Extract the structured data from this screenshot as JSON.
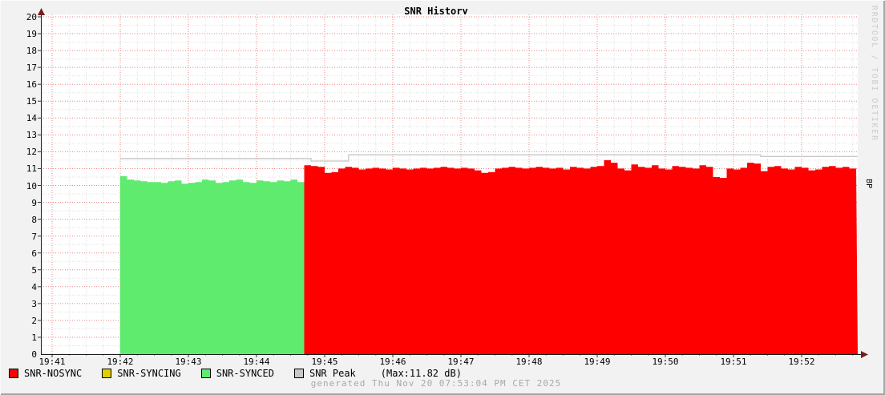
{
  "title": "SNR History",
  "footer": "generated Thu Nov 20 07:53:04 PM CET 2025",
  "watermark": "RRDTOOL / TOBI OETIKER",
  "right_axis_label": "BP",
  "colors": {
    "background": "#f2f2f2",
    "canvas": "#ffffff",
    "major_grid": "#ef8383",
    "minor_grid": "#dedede",
    "axis": "#1a1a1a",
    "arrow": "#7a1c1c",
    "nosync": "#ff0000",
    "syncing": "#e0d000",
    "synced": "#5eeb6e",
    "peak": "#c8c8c8",
    "footer_text": "#a8a8a8",
    "watermark_text": "#cbcbcb"
  },
  "legend": {
    "items": [
      {
        "label": "SNR-NOSYNC",
        "color": "#ff0000"
      },
      {
        "label": "SNR-SYNCING",
        "color": "#e0d000"
      },
      {
        "label": "SNR-SYNCED",
        "color": "#5eeb6e"
      },
      {
        "label": "SNR Peak",
        "color": "#c8c8c8"
      }
    ],
    "note": "(Max:11.82 dB)"
  },
  "chart_data": {
    "type": "area",
    "title": "SNR History",
    "ylabel_right": "BP",
    "ylim": [
      0,
      20
    ],
    "y_tick_step": 1,
    "grid": true,
    "x_ticks": [
      {
        "t": 41,
        "label": "19:41"
      },
      {
        "t": 42,
        "label": "19:42"
      },
      {
        "t": 43,
        "label": "19:43"
      },
      {
        "t": 44,
        "label": "19:44"
      },
      {
        "t": 45,
        "label": "19:45"
      },
      {
        "t": 46,
        "label": "19:46"
      },
      {
        "t": 47,
        "label": "19:47"
      },
      {
        "t": 48,
        "label": "19:48"
      },
      {
        "t": 49,
        "label": "19:49"
      },
      {
        "t": 50,
        "label": "19:50"
      },
      {
        "t": 51,
        "label": "19:51"
      },
      {
        "t": 52,
        "label": "19:52"
      }
    ],
    "x_range_minutes": [
      40.82,
      52.82
    ],
    "series": [
      {
        "name": "SNR-SYNCED",
        "type": "area",
        "color": "#5eeb6e",
        "start_minute": 42.0,
        "step_minutes": 0.1,
        "values": [
          10.55,
          10.35,
          10.3,
          10.25,
          10.2,
          10.2,
          10.15,
          10.25,
          10.3,
          10.1,
          10.15,
          10.2,
          10.35,
          10.3,
          10.15,
          10.2,
          10.3,
          10.35,
          10.2,
          10.15,
          10.3,
          10.25,
          10.2,
          10.3,
          10.25,
          10.35,
          10.2
        ]
      },
      {
        "name": "SNR-NOSYNC",
        "type": "area",
        "color": "#ff0000",
        "start_minute": 44.7,
        "step_minutes": 0.1,
        "values": [
          11.2,
          11.15,
          11.1,
          10.75,
          10.8,
          11.0,
          11.1,
          11.05,
          10.95,
          11.0,
          11.05,
          11.0,
          10.95,
          11.05,
          11.0,
          10.95,
          11.0,
          11.05,
          11.0,
          11.05,
          11.1,
          11.05,
          11.0,
          11.05,
          11.0,
          10.9,
          10.75,
          10.8,
          11.0,
          11.05,
          11.1,
          11.05,
          11.0,
          11.05,
          11.1,
          11.05,
          11.0,
          11.05,
          10.95,
          11.1,
          11.05,
          11.0,
          11.1,
          11.15,
          11.5,
          11.35,
          11.0,
          10.9,
          11.25,
          11.1,
          11.05,
          11.2,
          11.0,
          10.95,
          11.15,
          11.1,
          11.05,
          11.0,
          11.2,
          11.1,
          10.5,
          10.45,
          11.0,
          10.95,
          11.05,
          11.35,
          11.3,
          10.85,
          11.1,
          11.15,
          11.0,
          10.95,
          11.1,
          11.05,
          10.9,
          10.95,
          11.1,
          11.15,
          11.05,
          11.1,
          11.0
        ]
      },
      {
        "name": "SNR Peak",
        "type": "line",
        "color": "#c8c8c8",
        "segments": [
          [
            42.0,
            11.6
          ],
          [
            44.8,
            11.45
          ],
          [
            45.35,
            11.82
          ],
          [
            51.4,
            11.72
          ]
        ],
        "end_minute": 52.82,
        "max_label": "(Max:11.82 dB)"
      }
    ]
  }
}
